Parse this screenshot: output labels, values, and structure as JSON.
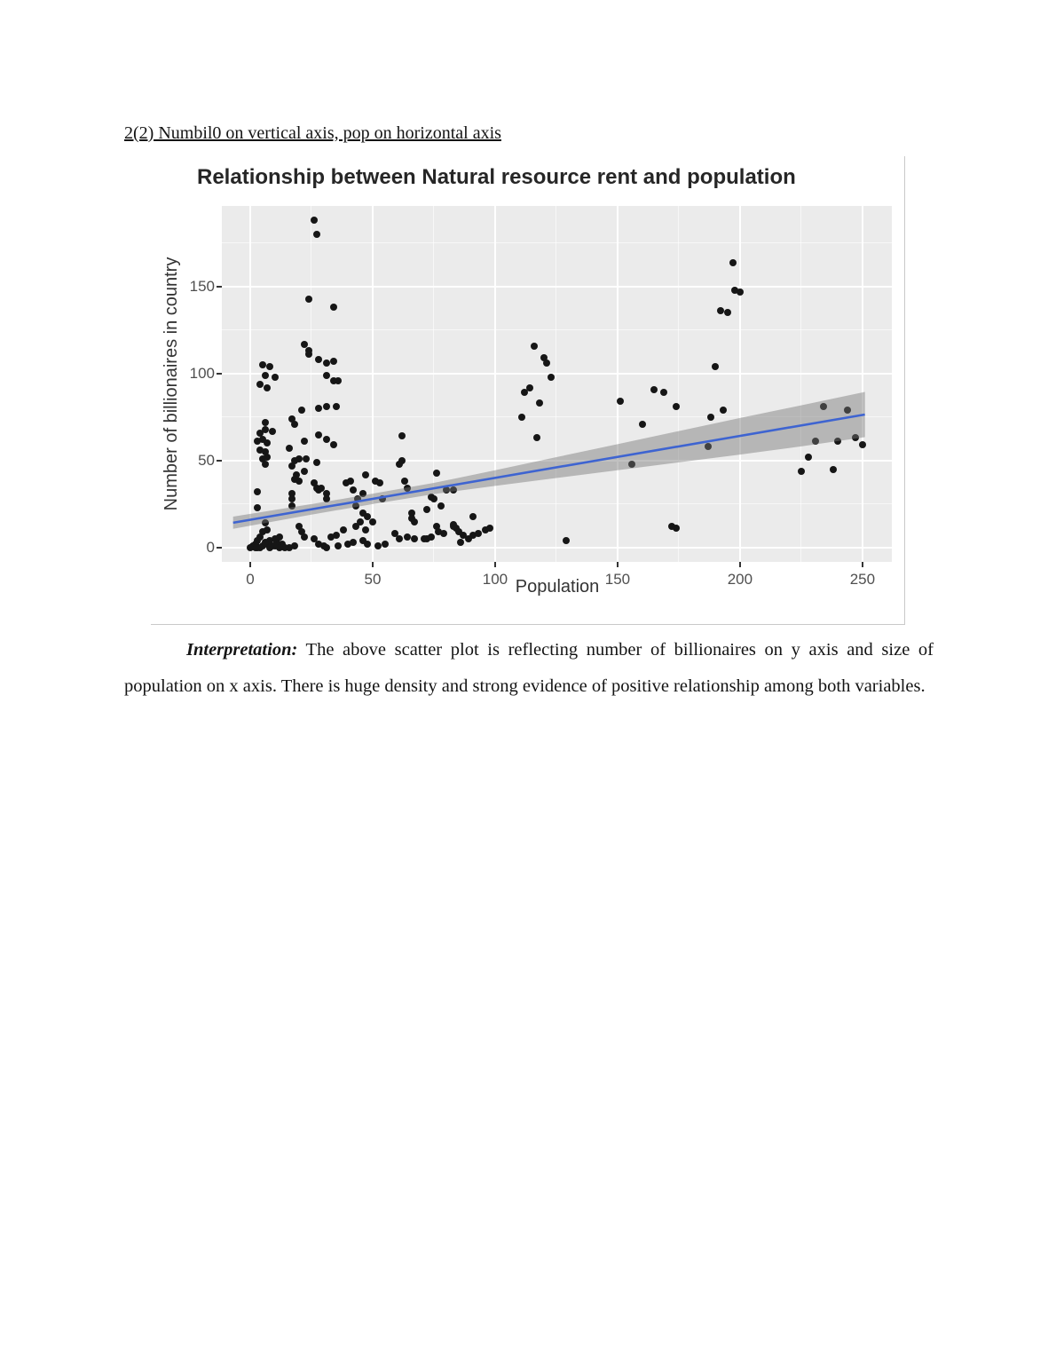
{
  "page": {
    "heading": "2(2) Numbil0 on vertical axis, pop on horizontal axis"
  },
  "paragraph": {
    "lead": "Interpretation:",
    "body": " The above scatter plot is reflecting number of billionaires on y axis and size of population on x axis. There is huge density and strong evidence of positive relationship among both variables."
  },
  "chart_data": {
    "type": "scatter",
    "title": "Relationship between Natural resource rent and population",
    "xlabel": "Population",
    "ylabel": "Number of billionaires in country",
    "xlim": [
      -11.6,
      262
    ],
    "ylim": [
      -8.2,
      196.4
    ],
    "x_ticks": [
      0,
      50,
      100,
      150,
      200,
      250
    ],
    "y_ticks": [
      0,
      50,
      100,
      150
    ],
    "x_minor_ticks": [
      25,
      75,
      125,
      175,
      225
    ],
    "y_minor_ticks": [
      25,
      75,
      125,
      175
    ],
    "grid": "white major and minor gridlines on gray panel (ggplot style)",
    "panel_bg": "#ebebeb",
    "point_color": "#161616",
    "trend": {
      "kind": "linear",
      "color": "#3e64d1",
      "x": [
        -7,
        251
      ],
      "y": [
        14.3,
        76.5
      ]
    },
    "ci_band": {
      "color": "rgba(118,118,118,0.45)",
      "x": [
        -7,
        25,
        50,
        75,
        100,
        125,
        150,
        175,
        200,
        225,
        251
      ],
      "low": [
        10.8,
        19,
        25,
        30.8,
        35.5,
        40,
        44.5,
        49,
        53.5,
        58.2,
        63.5
      ],
      "high": [
        17.8,
        25,
        31,
        37.2,
        44.5,
        52,
        59.5,
        67,
        74.5,
        81.8,
        89.5
      ]
    },
    "points": [
      [
        26,
        188
      ],
      [
        27,
        180
      ],
      [
        24,
        143
      ],
      [
        34,
        138
      ],
      [
        22,
        117
      ],
      [
        24,
        113
      ],
      [
        24,
        111
      ],
      [
        28,
        108
      ],
      [
        31,
        106
      ],
      [
        34,
        107
      ],
      [
        31,
        99
      ],
      [
        34,
        96
      ],
      [
        36,
        96
      ],
      [
        5,
        105
      ],
      [
        8,
        104
      ],
      [
        6,
        99
      ],
      [
        10,
        98
      ],
      [
        4,
        94
      ],
      [
        7,
        92
      ],
      [
        21,
        79
      ],
      [
        28,
        80
      ],
      [
        31,
        81
      ],
      [
        35,
        81
      ],
      [
        17,
        74
      ],
      [
        18,
        71
      ],
      [
        6,
        72
      ],
      [
        6,
        68
      ],
      [
        9,
        67
      ],
      [
        4,
        66
      ],
      [
        5,
        62
      ],
      [
        3,
        61
      ],
      [
        7,
        60
      ],
      [
        22,
        61
      ],
      [
        28,
        65
      ],
      [
        31,
        62
      ],
      [
        34,
        59
      ],
      [
        4,
        56
      ],
      [
        6,
        55
      ],
      [
        16,
        57
      ],
      [
        23,
        51
      ],
      [
        62,
        64
      ],
      [
        5,
        51
      ],
      [
        7,
        52
      ],
      [
        6,
        48
      ],
      [
        17,
        47
      ],
      [
        18,
        50
      ],
      [
        20,
        51
      ],
      [
        22,
        44
      ],
      [
        19,
        42
      ],
      [
        18,
        39
      ],
      [
        20,
        38
      ],
      [
        27,
        49
      ],
      [
        47,
        42
      ],
      [
        51,
        38
      ],
      [
        53,
        37
      ],
      [
        61,
        48
      ],
      [
        62,
        50
      ],
      [
        26,
        37
      ],
      [
        27,
        34
      ],
      [
        28,
        33
      ],
      [
        29,
        34
      ],
      [
        31,
        31
      ],
      [
        31,
        28
      ],
      [
        39,
        37
      ],
      [
        41,
        38
      ],
      [
        42,
        33
      ],
      [
        44,
        28
      ],
      [
        46,
        31
      ],
      [
        43,
        24
      ],
      [
        54,
        28
      ],
      [
        3,
        32
      ],
      [
        17,
        31
      ],
      [
        17,
        28
      ],
      [
        63,
        38
      ],
      [
        64,
        34
      ],
      [
        76,
        43
      ],
      [
        80,
        33
      ],
      [
        83,
        33
      ],
      [
        74,
        29
      ],
      [
        75,
        28
      ],
      [
        78,
        24
      ],
      [
        3,
        23
      ],
      [
        17,
        24
      ],
      [
        46,
        20
      ],
      [
        48,
        18
      ],
      [
        45,
        15
      ],
      [
        50,
        15
      ],
      [
        66,
        20
      ],
      [
        66,
        17
      ],
      [
        67,
        15
      ],
      [
        72,
        22
      ],
      [
        91,
        18
      ],
      [
        43,
        12
      ],
      [
        20,
        12
      ],
      [
        21,
        9
      ],
      [
        22,
        6
      ],
      [
        6,
        14
      ],
      [
        7,
        10
      ],
      [
        5,
        9
      ],
      [
        4,
        6
      ],
      [
        3,
        4
      ],
      [
        2,
        2
      ],
      [
        1,
        1
      ],
      [
        3,
        0
      ],
      [
        5,
        1
      ],
      [
        7,
        2
      ],
      [
        9,
        1
      ],
      [
        11,
        3
      ],
      [
        12,
        6
      ],
      [
        10,
        5
      ],
      [
        8,
        4
      ],
      [
        6,
        3
      ],
      [
        13,
        2
      ],
      [
        26,
        5
      ],
      [
        28,
        2
      ],
      [
        33,
        6
      ],
      [
        35,
        7
      ],
      [
        38,
        10
      ],
      [
        31,
        0
      ],
      [
        30,
        1
      ],
      [
        36,
        1
      ],
      [
        40,
        2
      ],
      [
        42,
        3
      ],
      [
        47,
        10
      ],
      [
        59,
        8
      ],
      [
        61,
        5
      ],
      [
        64,
        6
      ],
      [
        67,
        5
      ],
      [
        71,
        5
      ],
      [
        72,
        5
      ],
      [
        74,
        6
      ],
      [
        76,
        12
      ],
      [
        77,
        9
      ],
      [
        83,
        13
      ],
      [
        84,
        11
      ],
      [
        85,
        9
      ],
      [
        87,
        7
      ],
      [
        89,
        5
      ],
      [
        91,
        7
      ],
      [
        46,
        4
      ],
      [
        48,
        2
      ],
      [
        52,
        1
      ],
      [
        55,
        2
      ],
      [
        79,
        8
      ],
      [
        83,
        12
      ],
      [
        86,
        3
      ],
      [
        93,
        8
      ],
      [
        96,
        10
      ],
      [
        98,
        11
      ],
      [
        129,
        4
      ],
      [
        172,
        12
      ],
      [
        174,
        11
      ],
      [
        16,
        0
      ],
      [
        18,
        1
      ],
      [
        14,
        0
      ],
      [
        2,
        0
      ],
      [
        0,
        0
      ],
      [
        4,
        0
      ],
      [
        8,
        0
      ],
      [
        10,
        1
      ],
      [
        12,
        0
      ],
      [
        116,
        116
      ],
      [
        120,
        109
      ],
      [
        121,
        106
      ],
      [
        123,
        98
      ],
      [
        114,
        92
      ],
      [
        112,
        89
      ],
      [
        118,
        83
      ],
      [
        111,
        75
      ],
      [
        117,
        63
      ],
      [
        151,
        84
      ],
      [
        156,
        48
      ],
      [
        160,
        71
      ],
      [
        165,
        91
      ],
      [
        169,
        89
      ],
      [
        174,
        81
      ],
      [
        188,
        75
      ],
      [
        193,
        79
      ],
      [
        187,
        58
      ],
      [
        190,
        104
      ],
      [
        192,
        136
      ],
      [
        195,
        135
      ],
      [
        197,
        164
      ],
      [
        198,
        148
      ],
      [
        200,
        147
      ],
      [
        225,
        44
      ],
      [
        228,
        52
      ],
      [
        231,
        61
      ],
      [
        234,
        81
      ],
      [
        238,
        45
      ],
      [
        240,
        61
      ],
      [
        244,
        79
      ],
      [
        247,
        63
      ],
      [
        250,
        59
      ]
    ]
  }
}
